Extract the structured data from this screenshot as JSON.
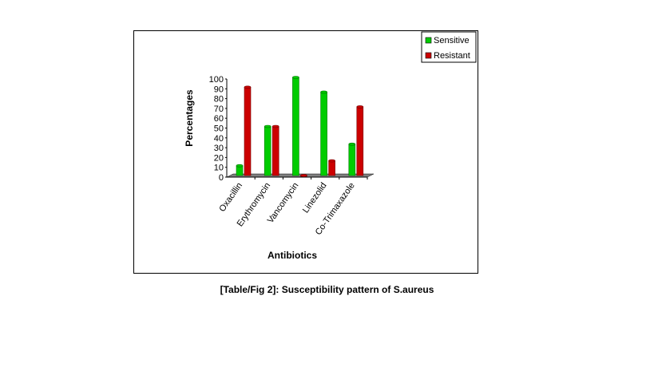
{
  "chart_data": {
    "type": "bar",
    "title": "",
    "xlabel": "Antibiotics",
    "ylabel": "Percentages",
    "ylim": [
      0,
      100
    ],
    "yticks": [
      0,
      10,
      20,
      30,
      40,
      50,
      60,
      70,
      80,
      90,
      100
    ],
    "categories": [
      "Oxacillin",
      "Erythromycin",
      "Vancomycin",
      "Linezolid",
      "Co-Trimaxazole"
    ],
    "series": [
      {
        "name": "Sensitive",
        "color": "#00cc00",
        "values": [
          10,
          50,
          100,
          85,
          32
        ]
      },
      {
        "name": "Resistant",
        "color": "#cc0000",
        "values": [
          90,
          50,
          0,
          15,
          70
        ]
      }
    ],
    "legend": "top-right",
    "grid": false
  },
  "caption": "[Table/Fig 2]: Susceptibility pattern of S.aureus"
}
